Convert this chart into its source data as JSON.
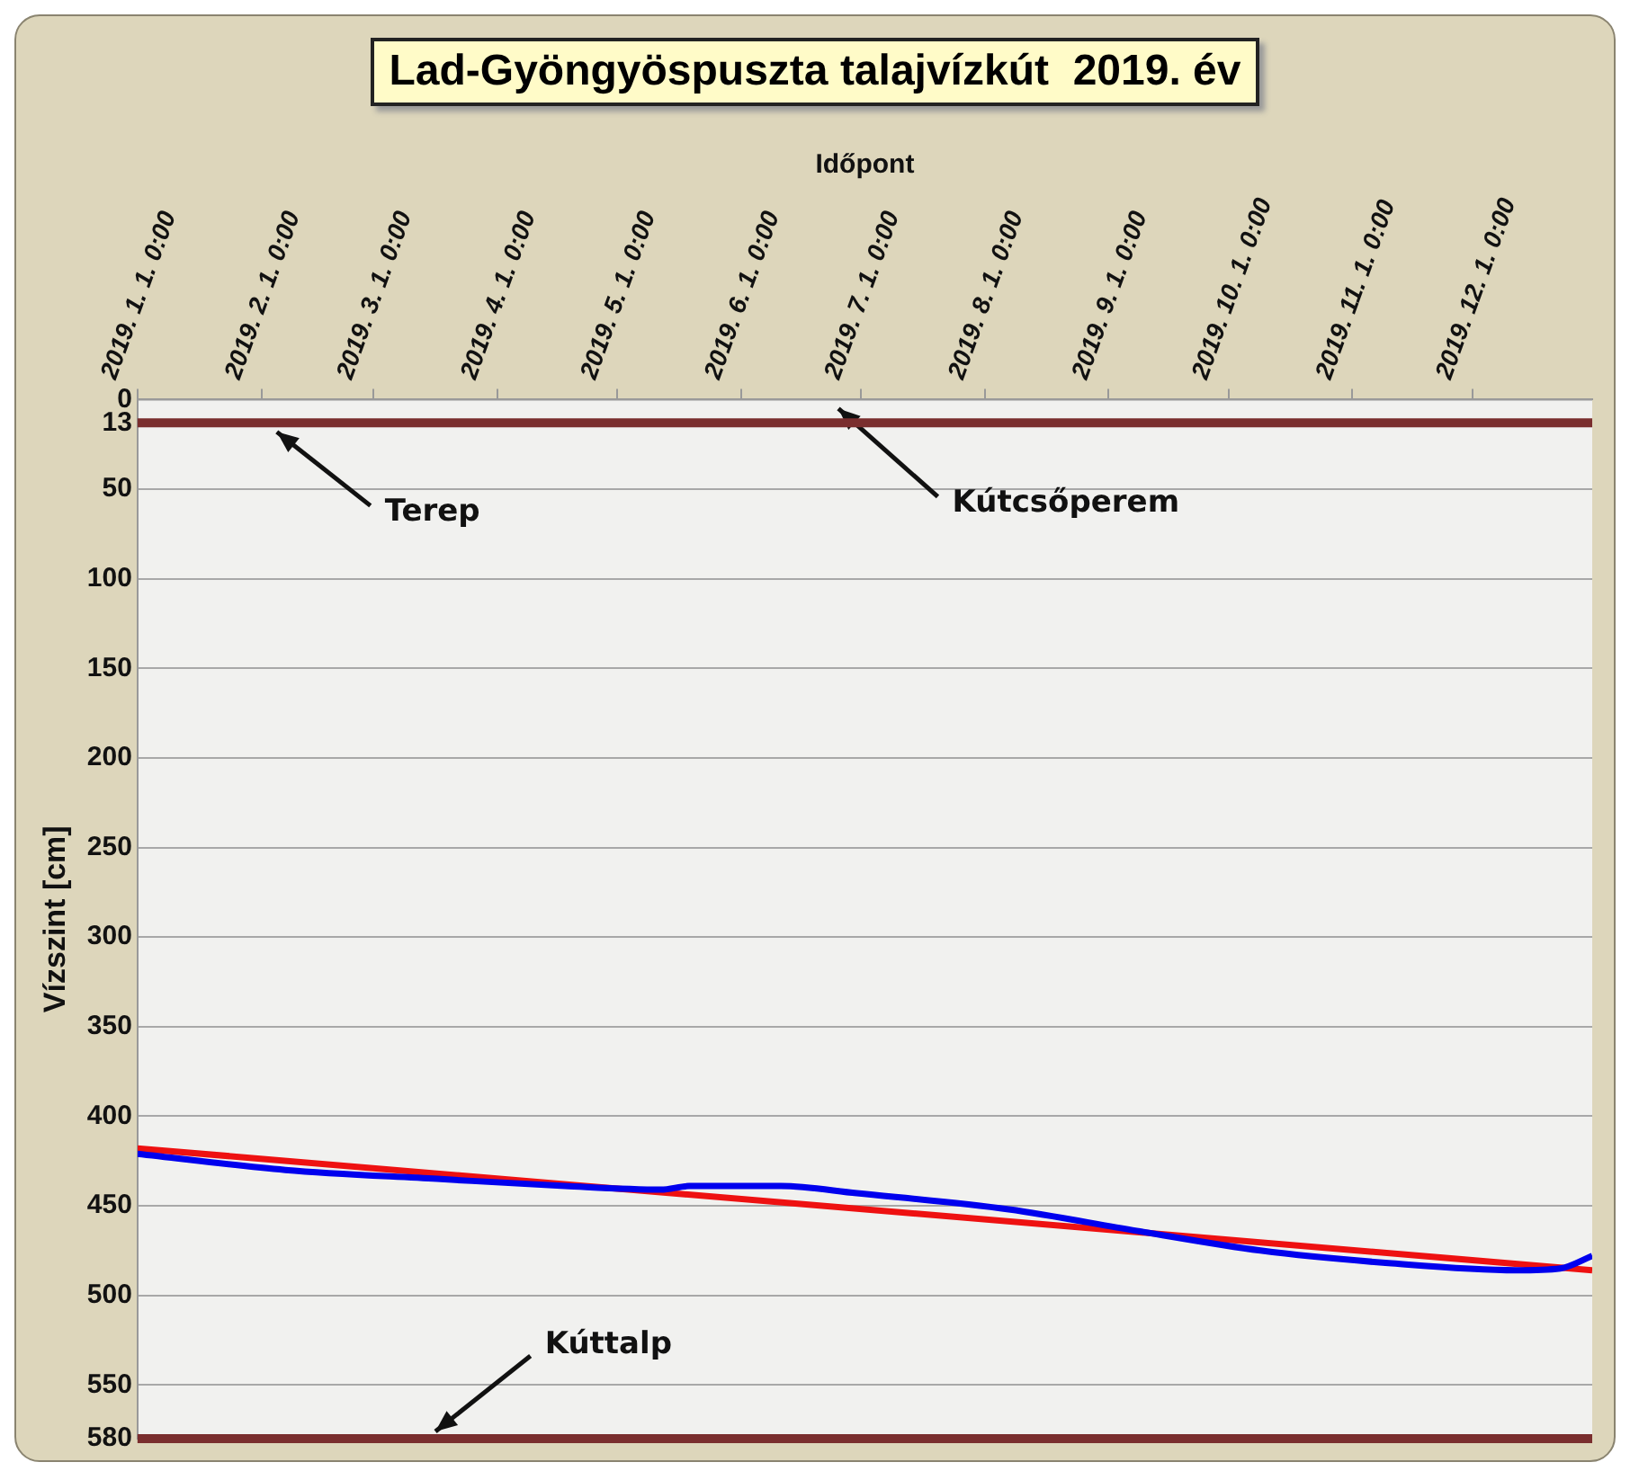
{
  "chart_data": {
    "type": "line",
    "title": "Lad-Gyöngyöspuszta talajvízkút  2019. év",
    "xlabel": "Időpont",
    "ylabel": "Vízszint [cm]",
    "x": [
      "2019-01-01",
      "2019-02-07",
      "2019-03-17",
      "2019-04-18",
      "2019-05-12",
      "2019-05-19",
      "2019-06-11",
      "2019-06-30",
      "2019-08-07",
      "2019-09-08",
      "2019-10-09",
      "2019-11-10",
      "2019-12-12",
      "2019-12-23",
      "2019-12-31"
    ],
    "series": [
      {
        "color": "#0000ee",
        "values": [
          421,
          430,
          435,
          439,
          441,
          439,
          439,
          443,
          452,
          464,
          475,
          482,
          486,
          485,
          478
        ]
      },
      {
        "type": "line",
        "color": "#ee1111",
        "x": [
          "2019-01-01",
          "2019-12-31"
        ],
        "values": [
          418,
          486
        ]
      }
    ],
    "xlim": [
      "2019-01-01",
      "2019-12-31"
    ],
    "xticks": [
      {
        "value": "2019-01-01",
        "label": "2019. 1. 1. 0:00"
      },
      {
        "value": "2019-02-01",
        "label": "2019. 2. 1. 0:00"
      },
      {
        "value": "2019-03-01",
        "label": "2019. 3. 1. 0:00"
      },
      {
        "value": "2019-04-01",
        "label": "2019. 4. 1. 0:00"
      },
      {
        "value": "2019-05-01",
        "label": "2019. 5. 1. 0:00"
      },
      {
        "value": "2019-06-01",
        "label": "2019. 6. 1. 0:00"
      },
      {
        "value": "2019-07-01",
        "label": "2019. 7. 1. 0:00"
      },
      {
        "value": "2019-08-01",
        "label": "2019. 8. 1. 0:00"
      },
      {
        "value": "2019-09-01",
        "label": "2019. 9. 1. 0:00"
      },
      {
        "value": "2019-10-01",
        "label": "2019. 10. 1. 0:00"
      },
      {
        "value": "2019-11-01",
        "label": "2019. 11. 1. 0:00"
      },
      {
        "value": "2019-12-01",
        "label": "2019. 12. 1. 0:00"
      }
    ],
    "ylim": [
      580,
      0
    ],
    "yticks": [
      0,
      13,
      50,
      100,
      150,
      200,
      250,
      300,
      350,
      400,
      450,
      500,
      550,
      580
    ],
    "ref_lines": [
      {
        "axis": "y",
        "value": 0,
        "label": "Kútcsőperem",
        "color": "#9a9a9a"
      },
      {
        "axis": "y",
        "value": 13,
        "label": "Terep",
        "color": "#7a2e2e"
      },
      {
        "axis": "y",
        "value": 580,
        "label": "Kúttalp",
        "color": "#7a2e2e"
      }
    ],
    "grid": "y",
    "legend": false,
    "marker": "none",
    "line_style": "solid"
  }
}
